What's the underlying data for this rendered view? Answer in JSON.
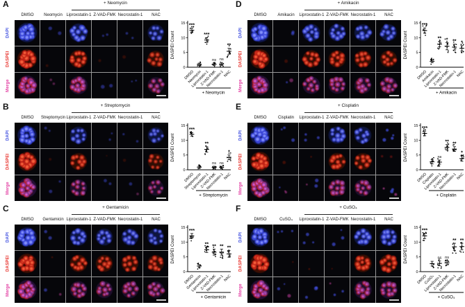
{
  "figure": {
    "background": "#ffffff",
    "micrograph_background": "#06060a",
    "row_labels": [
      {
        "label": "DAPI",
        "color": "#3f4fe0"
      },
      {
        "label": "DASPEI",
        "color": "#e8322c"
      },
      {
        "label": "Merge",
        "color": "#e23ba1"
      }
    ],
    "y_axis_label": "DASPEI Count",
    "y_ticks": [
      0,
      5,
      10,
      15
    ],
    "y_max": 15,
    "scale_bar": {
      "present": true,
      "color": "#cfcfcf"
    },
    "panels": [
      {
        "letter": "A",
        "treatment_header": "+ Neomycin",
        "columns": [
          "DMSO",
          "Neomycin",
          "Liproxstatin-1",
          "Z-VAD-FMK",
          "Necrostatin-1",
          "NAC"
        ],
        "chart_data": {
          "type": "scatter",
          "categories": [
            "DMSO",
            "Neomycin",
            "Liproxstatin-1",
            "Z-VAD-FMK",
            "Necrostatin-1",
            "NAC"
          ],
          "means": [
            12.5,
            1.0,
            9.2,
            1.0,
            1.1,
            5.4
          ],
          "sem": [
            0.7,
            0.4,
            0.8,
            0.4,
            0.5,
            1.0
          ],
          "significance": [
            "***",
            "",
            "***",
            "ns",
            "ns",
            "**"
          ],
          "ylabel": "DASPEI Count",
          "ylim": [
            0,
            15
          ],
          "xlabel": "+ Neomycin"
        }
      },
      {
        "letter": "B",
        "treatment_header": "+ Streptomycin",
        "columns": [
          "DMSO",
          "Streptomycin",
          "Liproxstatin-1",
          "Z-VAD-FMK",
          "Necrostatin-1",
          "NAC"
        ],
        "chart_data": {
          "type": "scatter",
          "categories": [
            "DMSO",
            "Streptomycin",
            "Liproxstatin-1",
            "Z-VAD-FMK",
            "Necrostatin-1",
            "NAC"
          ],
          "means": [
            12.0,
            0.9,
            6.9,
            0.8,
            0.8,
            4.2
          ],
          "sem": [
            0.6,
            0.4,
            0.9,
            0.4,
            0.4,
            0.8
          ],
          "significance": [
            "***",
            "",
            "**",
            "ns",
            "ns",
            "*"
          ],
          "ylabel": "DASPEI Count",
          "ylim": [
            0,
            15
          ],
          "xlabel": "+ Streptomycin"
        }
      },
      {
        "letter": "C",
        "treatment_header": "+ Gentamicin",
        "columns": [
          "DMSO",
          "Gentamicin",
          "Liproxstatin-1",
          "Z-VAD-FMK",
          "Necrostatin-1",
          "NAC"
        ],
        "chart_data": {
          "type": "scatter",
          "categories": [
            "DMSO",
            "Gentamicin",
            "Liproxstatin-1",
            "Z-VAD-FMK",
            "Necrostatin-1",
            "NAC"
          ],
          "means": [
            12.1,
            1.9,
            7.4,
            6.6,
            6.6,
            6.0
          ],
          "sem": [
            0.8,
            0.5,
            0.9,
            1.0,
            1.0,
            1.1
          ],
          "significance": [
            "***",
            "",
            "**",
            "**",
            "**",
            "**"
          ],
          "ylabel": "DASPEI Count",
          "ylim": [
            0,
            15
          ],
          "xlabel": "+ Gentamicin"
        }
      },
      {
        "letter": "D",
        "treatment_header": "+ Amikacin",
        "columns": [
          "DMSO",
          "Amikacin",
          "Liproxstatin-1",
          "Z-VAD-FMK",
          "Necrostatin-1",
          "NAC"
        ],
        "chart_data": {
          "type": "scatter",
          "categories": [
            "DMSO",
            "Amikacin",
            "Liproxstatin-1",
            "Z-VAD-FMK",
            "Necrostatin-1",
            "NAC"
          ],
          "means": [
            12.4,
            2.0,
            7.8,
            7.1,
            6.8,
            6.4
          ],
          "sem": [
            0.9,
            0.5,
            0.9,
            1.2,
            1.0,
            0.9
          ],
          "significance": [
            "***",
            "",
            "**",
            "*",
            "**",
            "*"
          ],
          "ylabel": "DASPEI Count",
          "ylim": [
            0,
            15
          ],
          "xlabel": "+ Amikacin"
        }
      },
      {
        "letter": "E",
        "treatment_header": "+ Cisplatin",
        "columns": [
          "DMSO",
          "Cisplatin",
          "Liproxstatin-1",
          "Z-VAD-FMK",
          "Necrostatin-1",
          "NAC"
        ],
        "chart_data": {
          "type": "scatter",
          "categories": [
            "DMSO",
            "Cisplatin",
            "Liproxstatin-1",
            "Z-VAD-FMK",
            "Necrostatin-1",
            "NAC"
          ],
          "means": [
            12.3,
            2.7,
            2.6,
            7.6,
            7.0,
            3.8
          ],
          "sem": [
            0.8,
            0.7,
            0.7,
            0.9,
            0.8,
            0.9
          ],
          "significance": [
            "***",
            "",
            "ns",
            "**",
            "**",
            "*"
          ],
          "ylabel": "DASPEI Count",
          "ylim": [
            0,
            15
          ],
          "xlabel": "+ Cisplatin"
        }
      },
      {
        "letter": "F",
        "treatment_header": "+ CuSO₄",
        "columns": [
          "DMSO",
          "CuSO₄",
          "Liproxstatin-1",
          "Z-VAD-FMK",
          "Necrostatin-1",
          "NAC"
        ],
        "chart_data": {
          "type": "scatter",
          "categories": [
            "DMSO",
            "CuSO₄",
            "Liproxstatin-1",
            "Z-VAD-FMK",
            "Necrostatin-1",
            "NAC"
          ],
          "means": [
            12.1,
            2.7,
            2.8,
            3.0,
            8.4,
            8.5
          ],
          "sem": [
            0.9,
            0.8,
            0.8,
            0.7,
            1.2,
            1.1
          ],
          "significance": [
            "***",
            "",
            "ns",
            "ns",
            "**",
            "**"
          ],
          "ylabel": "DASPEI Count",
          "ylim": [
            0,
            15
          ],
          "xlabel": "+ CuSO₄"
        }
      }
    ]
  }
}
